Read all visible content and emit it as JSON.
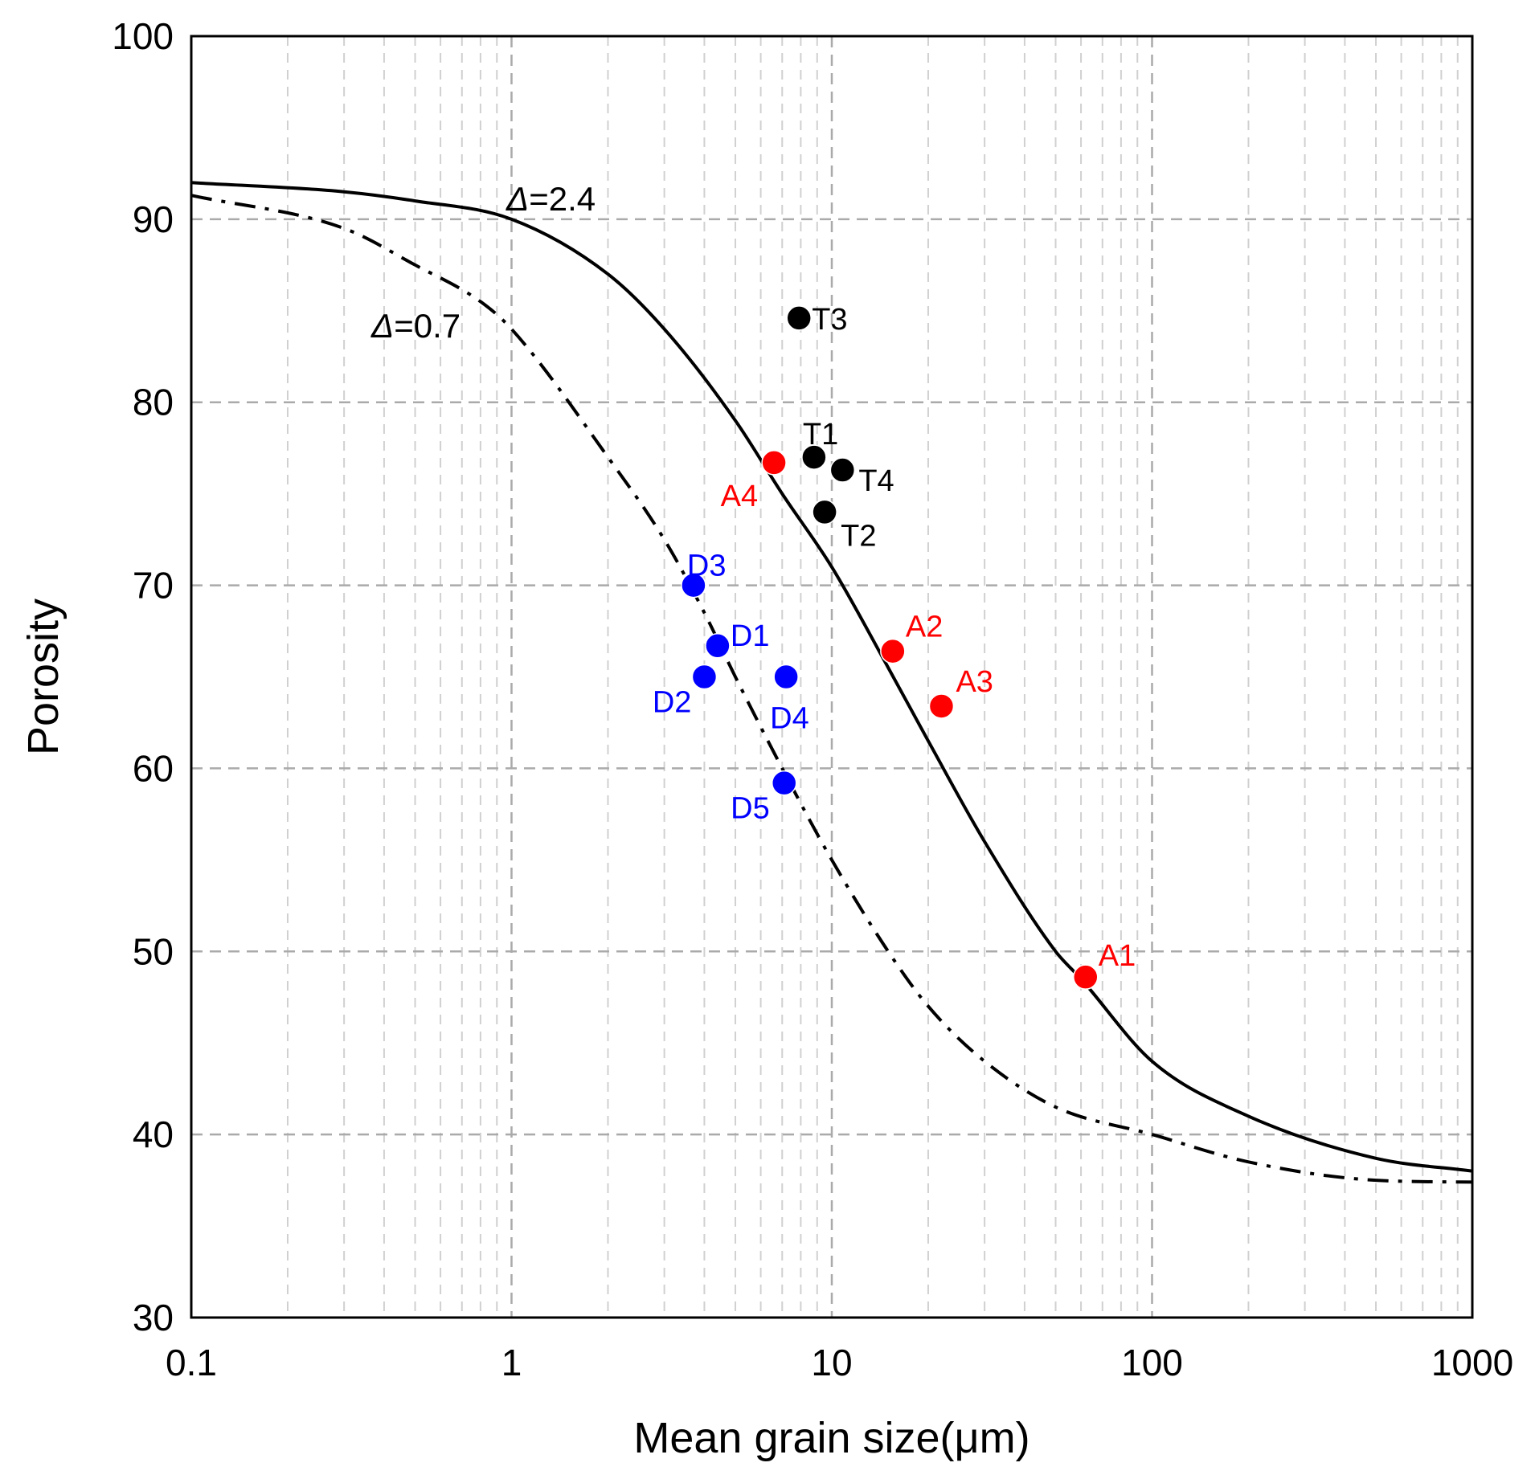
{
  "chart_data": {
    "type": "scatter",
    "title": "",
    "xlabel": "Mean grain size(μm)",
    "ylabel": "Porosity",
    "xscale": "log",
    "xlim": [
      0.1,
      1000
    ],
    "ylim": [
      30,
      100
    ],
    "grid": true,
    "x_ticks": [
      "0.1",
      "1",
      "10",
      "100",
      "1000"
    ],
    "y_ticks": [
      "30",
      "40",
      "50",
      "60",
      "70",
      "80",
      "90",
      "100"
    ],
    "curves": [
      {
        "name": "Δ=2.4",
        "delta_symbol": "Δ",
        "delta_value": "=2.4",
        "style": "solid",
        "color": "#000000",
        "x": [
          0.1,
          0.3,
          0.5,
          1,
          2,
          3,
          5,
          7,
          10,
          15,
          20,
          30,
          50,
          60,
          100,
          200,
          500,
          1000
        ],
        "y": [
          92,
          91.5,
          91,
          90,
          87,
          84,
          79,
          75,
          71,
          65.5,
          61.5,
          56,
          50,
          48.5,
          44,
          41,
          38.7,
          38
        ]
      },
      {
        "name": "Δ=0.7",
        "delta_symbol": "Δ",
        "delta_value": "=0.7",
        "style": "dashdot",
        "color": "#000000",
        "x": [
          0.1,
          0.3,
          0.5,
          0.8,
          1,
          2,
          3,
          4,
          5,
          7,
          10,
          15,
          20,
          30,
          50,
          100,
          200,
          500,
          1000
        ],
        "y": [
          91.3,
          89.5,
          87.5,
          85.5,
          84,
          77,
          72.5,
          68.5,
          65,
          60,
          55,
          50,
          47,
          44,
          41.5,
          40,
          38.5,
          37.5,
          37.4
        ]
      }
    ],
    "series": [
      {
        "name": "A",
        "color": "#ff0000",
        "points": [
          {
            "label": "A1",
            "x": 62,
            "y": 48.6
          },
          {
            "label": "A2",
            "x": 15.5,
            "y": 66.4
          },
          {
            "label": "A3",
            "x": 22,
            "y": 63.4
          },
          {
            "label": "A4",
            "x": 6.6,
            "y": 76.7
          }
        ]
      },
      {
        "name": "T",
        "color": "#000000",
        "points": [
          {
            "label": "T1",
            "x": 8.8,
            "y": 77
          },
          {
            "label": "T2",
            "x": 9.5,
            "y": 74
          },
          {
            "label": "T3",
            "x": 7.9,
            "y": 84.6
          },
          {
            "label": "T4",
            "x": 10.8,
            "y": 76.3
          }
        ]
      },
      {
        "name": "D",
        "color": "#0000ff",
        "points": [
          {
            "label": "D1",
            "x": 4.4,
            "y": 66.7
          },
          {
            "label": "D2",
            "x": 4.0,
            "y": 65
          },
          {
            "label": "D3",
            "x": 3.7,
            "y": 70
          },
          {
            "label": "D4",
            "x": 7.2,
            "y": 65
          },
          {
            "label": "D5",
            "x": 7.1,
            "y": 59.2
          }
        ]
      }
    ]
  }
}
